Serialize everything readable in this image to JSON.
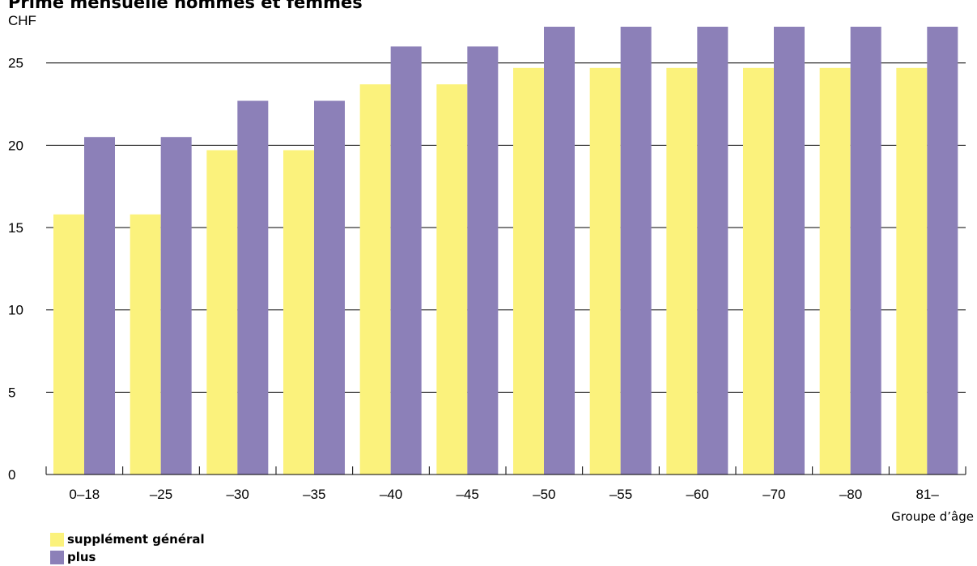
{
  "chart_data": {
    "type": "bar",
    "title": "Prime mensuelle hommes et femmes",
    "ylabel": "CHF",
    "xlabel": "Groupe d’âge",
    "categories": [
      "0–18",
      "–25",
      "–30",
      "–35",
      "–40",
      "–45",
      "–50",
      "–55",
      "–60",
      "–70",
      "–80",
      "81–"
    ],
    "series": [
      {
        "name": "supplément général",
        "color": "#fbf27c",
        "values": [
          15.8,
          15.8,
          19.7,
          19.7,
          23.7,
          23.7,
          24.7,
          24.7,
          24.7,
          24.7,
          24.7,
          24.7
        ]
      },
      {
        "name": "plus",
        "color": "#8c80b8",
        "values": [
          20.5,
          20.5,
          22.7,
          22.7,
          26.0,
          26.0,
          27.2,
          27.2,
          27.2,
          27.2,
          27.2,
          27.2
        ]
      }
    ],
    "ylim": [
      0,
      27.2
    ],
    "yticks": [
      0,
      5,
      10,
      15,
      20,
      25
    ],
    "grid": true,
    "legend_position": "bottom-left"
  }
}
